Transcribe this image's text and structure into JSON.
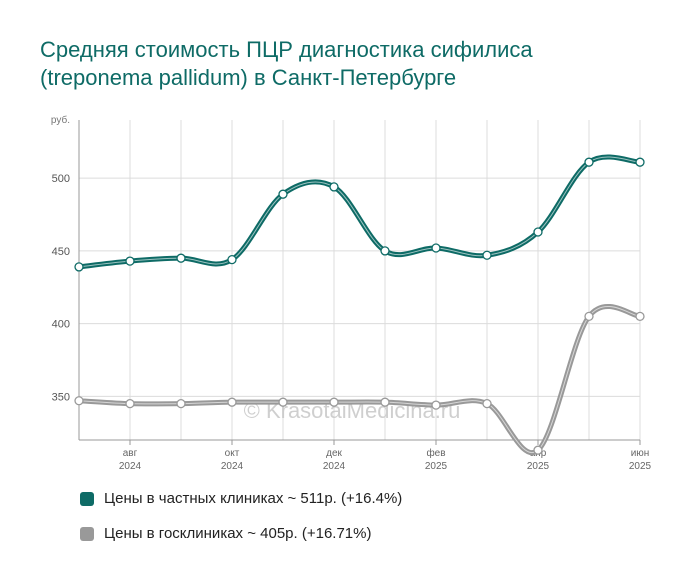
{
  "title_line1": "Средняя стоимость ПЦР диагностика сифилиса",
  "title_line2": "(treponema pallidum) в Санкт-Петербурге",
  "watermark": "© KrasotaiMedicina.ru",
  "chart_data": {
    "type": "line",
    "ylabel": "руб.",
    "ylim": [
      320,
      540
    ],
    "yticks": [
      350,
      400,
      450,
      500
    ],
    "x": [
      "2024-07",
      "2024-08",
      "2024-09",
      "2024-10",
      "2024-11",
      "2024-12",
      "2025-01",
      "2025-02",
      "2025-03",
      "2025-04",
      "2025-05",
      "2025-06"
    ],
    "xtick_labels": [
      {
        "month": "авг",
        "year": "2024",
        "index": 1
      },
      {
        "month": "окт",
        "year": "2024",
        "index": 3
      },
      {
        "month": "дек",
        "year": "2024",
        "index": 5
      },
      {
        "month": "фев",
        "year": "2025",
        "index": 7
      },
      {
        "month": "апр",
        "year": "2025",
        "index": 9
      },
      {
        "month": "июн",
        "year": "2025",
        "index": 11
      }
    ],
    "grid": true,
    "legend_position": "bottom",
    "series": [
      {
        "name": "Цены в частных клиниках ~ 511р. (+16.4%)",
        "color": "#0e6b66",
        "values": [
          439,
          443,
          445,
          444,
          489,
          494,
          450,
          452,
          447,
          463,
          511,
          511
        ]
      },
      {
        "name": "Цены в госклиниках ~ 405р. (+16.71%)",
        "color": "#999999",
        "values": [
          347,
          345,
          345,
          346,
          346,
          346,
          346,
          344,
          345,
          313,
          405,
          405
        ]
      }
    ]
  }
}
